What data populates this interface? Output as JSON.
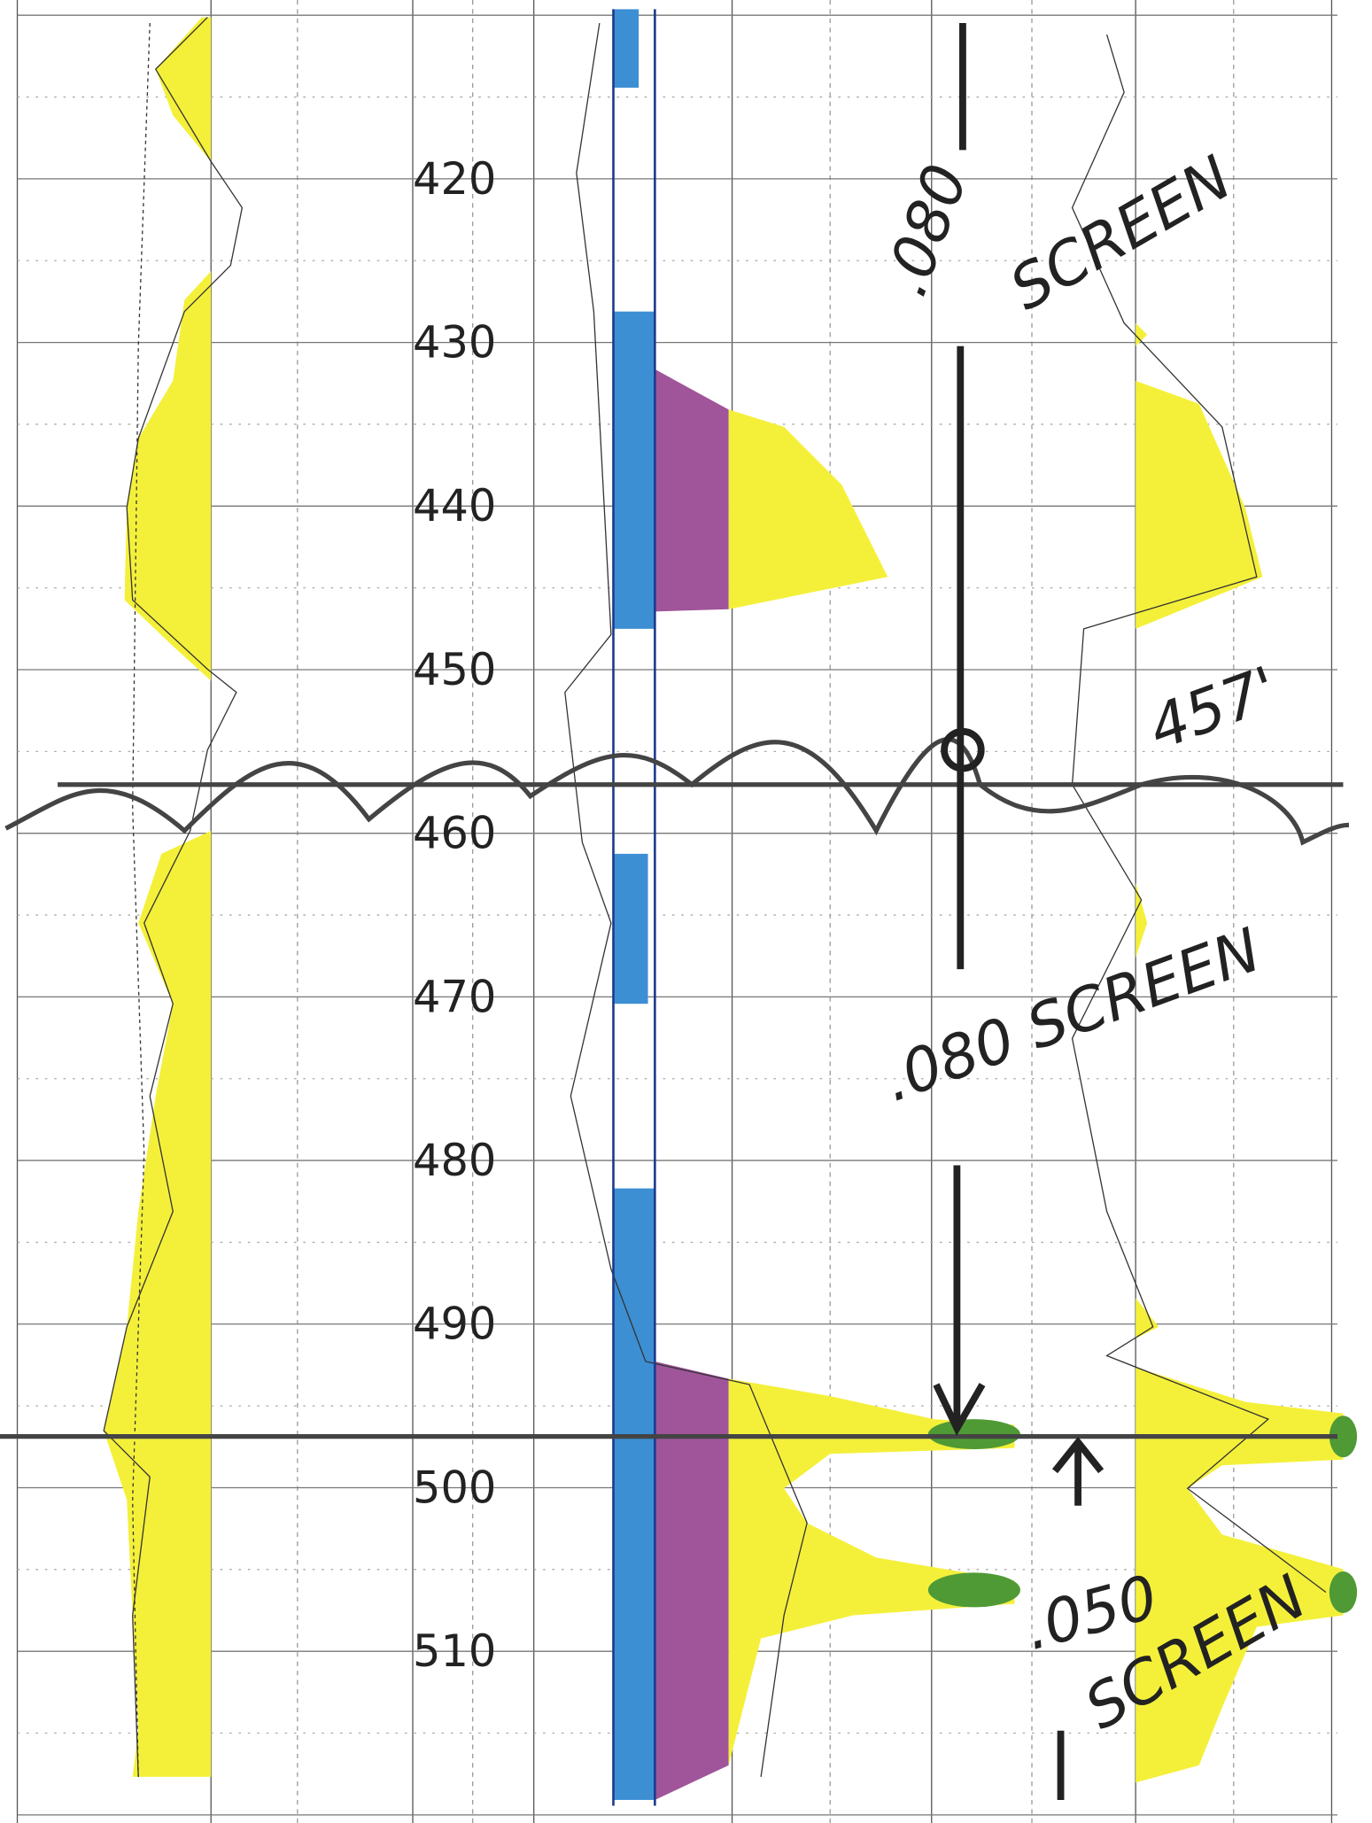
{
  "depth_labels": [
    "420",
    "430",
    "440",
    "450",
    "460",
    "470",
    "480",
    "490",
    "500",
    "510"
  ],
  "annotations": [
    ".080",
    "SCREEN",
    "457'",
    ".080 SCREEN",
    ".050",
    "SCREEN"
  ]
}
